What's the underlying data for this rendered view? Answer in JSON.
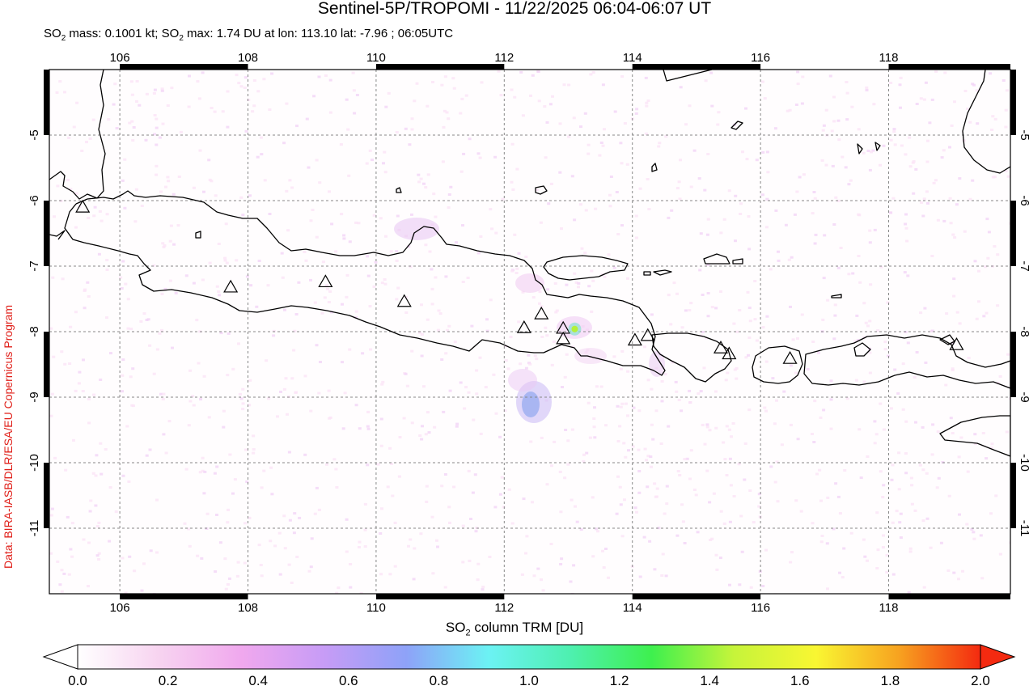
{
  "header": {
    "title": "Sentinel-5P/TROPOMI - 11/22/2025 06:04-06:07 UT",
    "subtitle_pre": "SO",
    "subtitle_sub1": "2",
    "subtitle_mid": " mass: 0.1001 kt; SO",
    "subtitle_sub2": "2",
    "subtitle_post": " max: 1.74 DU at lon: 113.10 lat: -7.96 ; 06:05UTC"
  },
  "credit": "Data: BIRA-IASB/DLR/ESA/EU Copernicus Program",
  "map": {
    "lon_range": [
      104.9,
      119.9
    ],
    "lat_range": [
      -12.0,
      -4.0
    ],
    "lon_ticks": [
      106,
      108,
      110,
      112,
      114,
      116,
      118
    ],
    "lat_ticks": [
      -5,
      -6,
      -7,
      -8,
      -9,
      -10,
      -11
    ],
    "lon_tick_labels": [
      "106",
      "108",
      "110",
      "112",
      "114",
      "116",
      "118"
    ],
    "lat_tick_labels": [
      "-5",
      "-6",
      "-7",
      "-8",
      "-9",
      "-10",
      "-11"
    ],
    "volcanoes": [
      {
        "lon": 105.42,
        "lat": -6.1
      },
      {
        "lon": 107.73,
        "lat": -7.32
      },
      {
        "lon": 109.21,
        "lat": -7.24
      },
      {
        "lon": 110.44,
        "lat": -7.54
      },
      {
        "lon": 112.31,
        "lat": -7.94
      },
      {
        "lon": 112.58,
        "lat": -7.73
      },
      {
        "lon": 112.92,
        "lat": -7.95
      },
      {
        "lon": 112.92,
        "lat": -8.11
      },
      {
        "lon": 114.04,
        "lat": -8.13
      },
      {
        "lon": 114.24,
        "lat": -8.06
      },
      {
        "lon": 115.38,
        "lat": -8.25
      },
      {
        "lon": 115.51,
        "lat": -8.34
      },
      {
        "lon": 116.46,
        "lat": -8.41
      },
      {
        "lon": 119.06,
        "lat": -8.2
      }
    ],
    "so2_max": {
      "lon": 113.1,
      "lat": -7.96,
      "value": 1.74
    }
  },
  "colorbar": {
    "title_pre": "SO",
    "title_sub": "2",
    "title_post": " column TRM [DU]",
    "ticks": [
      "0.0",
      "0.2",
      "0.4",
      "0.6",
      "0.8",
      "1.0",
      "1.2",
      "1.4",
      "1.6",
      "1.8",
      "2.0"
    ],
    "colors": [
      "#ffffff",
      "#f7d3f0",
      "#f0a8ee",
      "#c79cf6",
      "#8ea2f8",
      "#6cf2f4",
      "#4ef0b0",
      "#3ef04e",
      "#c6f43a",
      "#f9f632",
      "#f7a320",
      "#f42a10"
    ],
    "under_color": "#ffffff",
    "over_color": "#f42a10"
  }
}
